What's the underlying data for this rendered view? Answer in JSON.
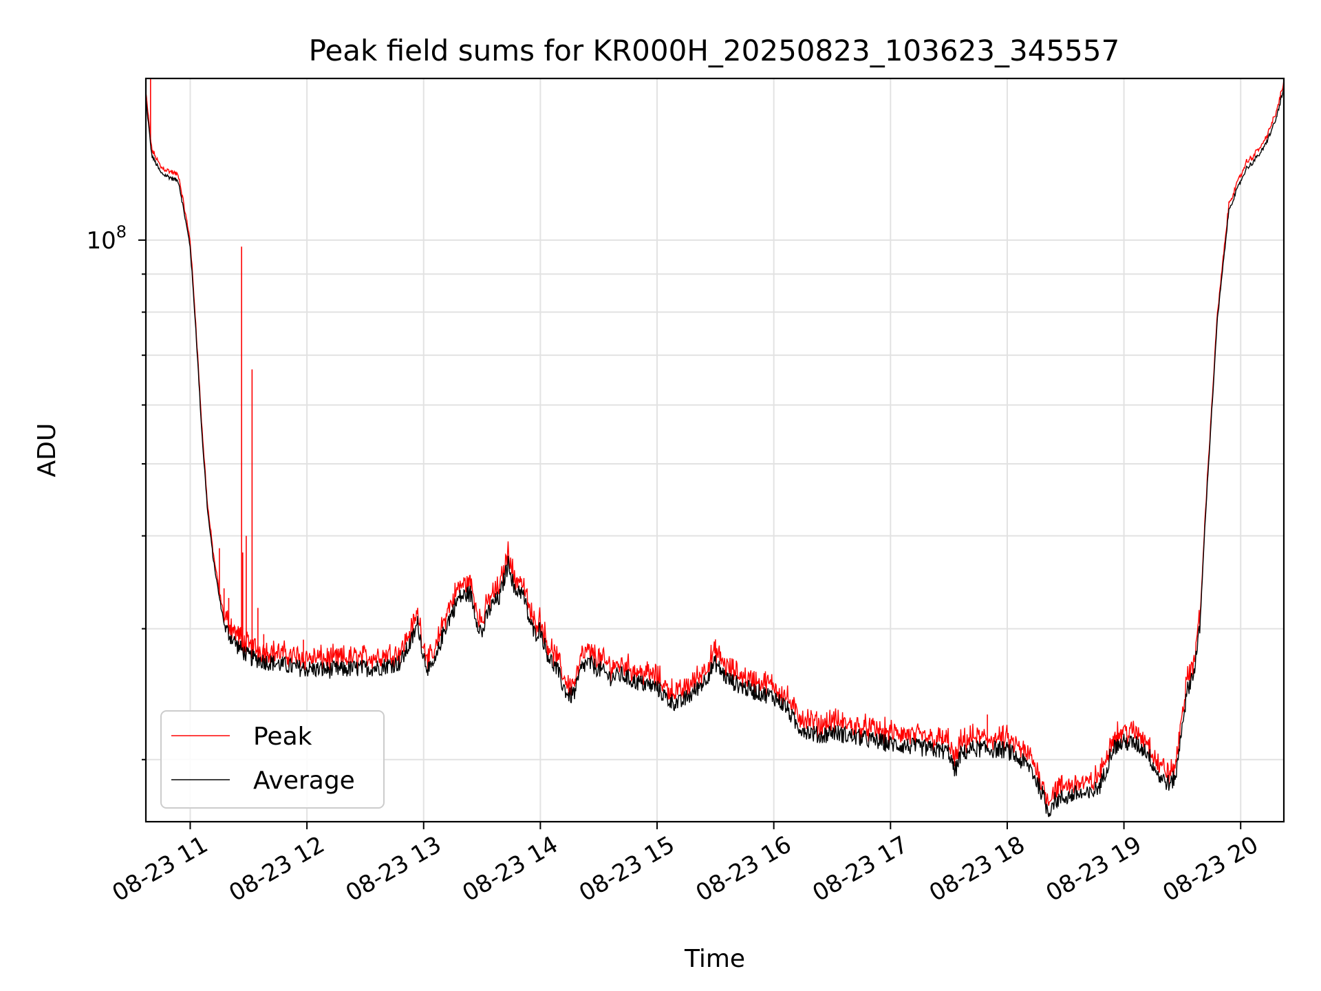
{
  "chart_data": {
    "type": "line",
    "title": "Peak field sums for KR000H_20250823_103623_345557",
    "xlabel": "Time",
    "ylabel": "ADU",
    "yscale": "log",
    "x_unit": "hour of 2025-08-23",
    "xlim": [
      10.62,
      20.37
    ],
    "ylim": [
      16500000,
      165000000
    ],
    "xticks": [
      {
        "value": 11,
        "label": "08-23 11"
      },
      {
        "value": 12,
        "label": "08-23 12"
      },
      {
        "value": 13,
        "label": "08-23 13"
      },
      {
        "value": 14,
        "label": "08-23 14"
      },
      {
        "value": 15,
        "label": "08-23 15"
      },
      {
        "value": 16,
        "label": "08-23 16"
      },
      {
        "value": 17,
        "label": "08-23 17"
      },
      {
        "value": 18,
        "label": "08-23 18"
      },
      {
        "value": 19,
        "label": "08-23 19"
      },
      {
        "value": 20,
        "label": "08-23 20"
      }
    ],
    "yticks_major": [
      {
        "value": 100000000,
        "base": "10",
        "exp": "8"
      }
    ],
    "yticks_minor": [
      20000000,
      30000000,
      40000000,
      50000000,
      60000000,
      70000000,
      80000000,
      90000000
    ],
    "grid": true,
    "legend_position": "lower-left",
    "series": [
      {
        "name": "Average",
        "color": "#000000",
        "x": [
          10.62,
          10.67,
          10.75,
          10.85,
          10.9,
          11.0,
          11.05,
          11.1,
          11.15,
          11.2,
          11.25,
          11.3,
          11.4,
          11.5,
          11.6,
          11.7,
          11.8,
          11.9,
          12.0,
          12.2,
          12.4,
          12.6,
          12.8,
          12.9,
          12.95,
          13.0,
          13.05,
          13.1,
          13.15,
          13.2,
          13.3,
          13.4,
          13.45,
          13.5,
          13.55,
          13.6,
          13.65,
          13.7,
          13.73,
          13.78,
          13.82,
          13.86,
          13.9,
          13.95,
          14.0,
          14.05,
          14.1,
          14.15,
          14.2,
          14.25,
          14.3,
          14.35,
          14.4,
          14.5,
          14.6,
          14.7,
          14.8,
          15.0,
          15.1,
          15.2,
          15.25,
          15.3,
          15.4,
          15.5,
          15.55,
          15.6,
          15.7,
          15.8,
          16.0,
          16.1,
          16.2,
          16.3,
          16.4,
          16.5,
          16.6,
          16.8,
          17.0,
          17.3,
          17.5,
          17.55,
          17.6,
          17.7,
          18.0,
          18.1,
          18.2,
          18.3,
          18.35,
          18.4,
          18.5,
          18.6,
          18.7,
          18.8,
          18.85,
          18.9,
          19.0,
          19.1,
          19.2,
          19.25,
          19.3,
          19.4,
          19.45,
          19.5,
          19.55,
          19.6,
          19.65,
          19.7,
          19.75,
          19.8,
          19.9,
          20.0,
          20.05,
          20.1,
          20.2,
          20.3,
          20.37
        ],
        "y": [
          155000000,
          130000000,
          123000000,
          121000000,
          120000000,
          98000000,
          75000000,
          55000000,
          43000000,
          37000000,
          33000000,
          30000000,
          28500000,
          27500000,
          27200000,
          27000000,
          26800000,
          26600000,
          26500000,
          26400000,
          26500000,
          26600000,
          27000000,
          29000000,
          30500000,
          27500000,
          26300000,
          27000000,
          29000000,
          30500000,
          33000000,
          33500000,
          31000000,
          29500000,
          31500000,
          32500000,
          33000000,
          35500000,
          37000000,
          33500000,
          34000000,
          33000000,
          31000000,
          29500000,
          30000000,
          28000000,
          27000000,
          26300000,
          25000000,
          24300000,
          24700000,
          26500000,
          27000000,
          26500000,
          25800000,
          26000000,
          25500000,
          25000000,
          24000000,
          23800000,
          24200000,
          24500000,
          25500000,
          27000000,
          26300000,
          25700000,
          25200000,
          24800000,
          24300000,
          23600000,
          22200000,
          21800000,
          21500000,
          21800000,
          21600000,
          21300000,
          21000000,
          20700000,
          20500000,
          19200000,
          20300000,
          20700000,
          20600000,
          20000000,
          19500000,
          18000000,
          17000000,
          17600000,
          17800000,
          18000000,
          17900000,
          18500000,
          19500000,
          20700000,
          21100000,
          21000000,
          20500000,
          19700000,
          19000000,
          18500000,
          19200000,
          22500000,
          25000000,
          26300000,
          30000000,
          43000000,
          58000000,
          78000000,
          110000000,
          120000000,
          125000000,
          127000000,
          133000000,
          145000000,
          160000000
        ]
      },
      {
        "name": "Peak",
        "color": "#ff0000",
        "spikes": [
          {
            "x": 10.66,
            "y": 165000000
          },
          {
            "x": 11.25,
            "y": 38500000
          },
          {
            "x": 11.29,
            "y": 34000000
          },
          {
            "x": 11.33,
            "y": 33000000
          },
          {
            "x": 11.44,
            "y": 98000000
          },
          {
            "x": 11.45,
            "y": 38000000
          },
          {
            "x": 11.48,
            "y": 40000000
          },
          {
            "x": 11.53,
            "y": 67000000
          },
          {
            "x": 11.58,
            "y": 32000000
          },
          {
            "x": 11.63,
            "y": 29500000
          },
          {
            "x": 11.97,
            "y": 29000000
          },
          {
            "x": 17.83,
            "y": 23000000
          }
        ]
      }
    ]
  }
}
